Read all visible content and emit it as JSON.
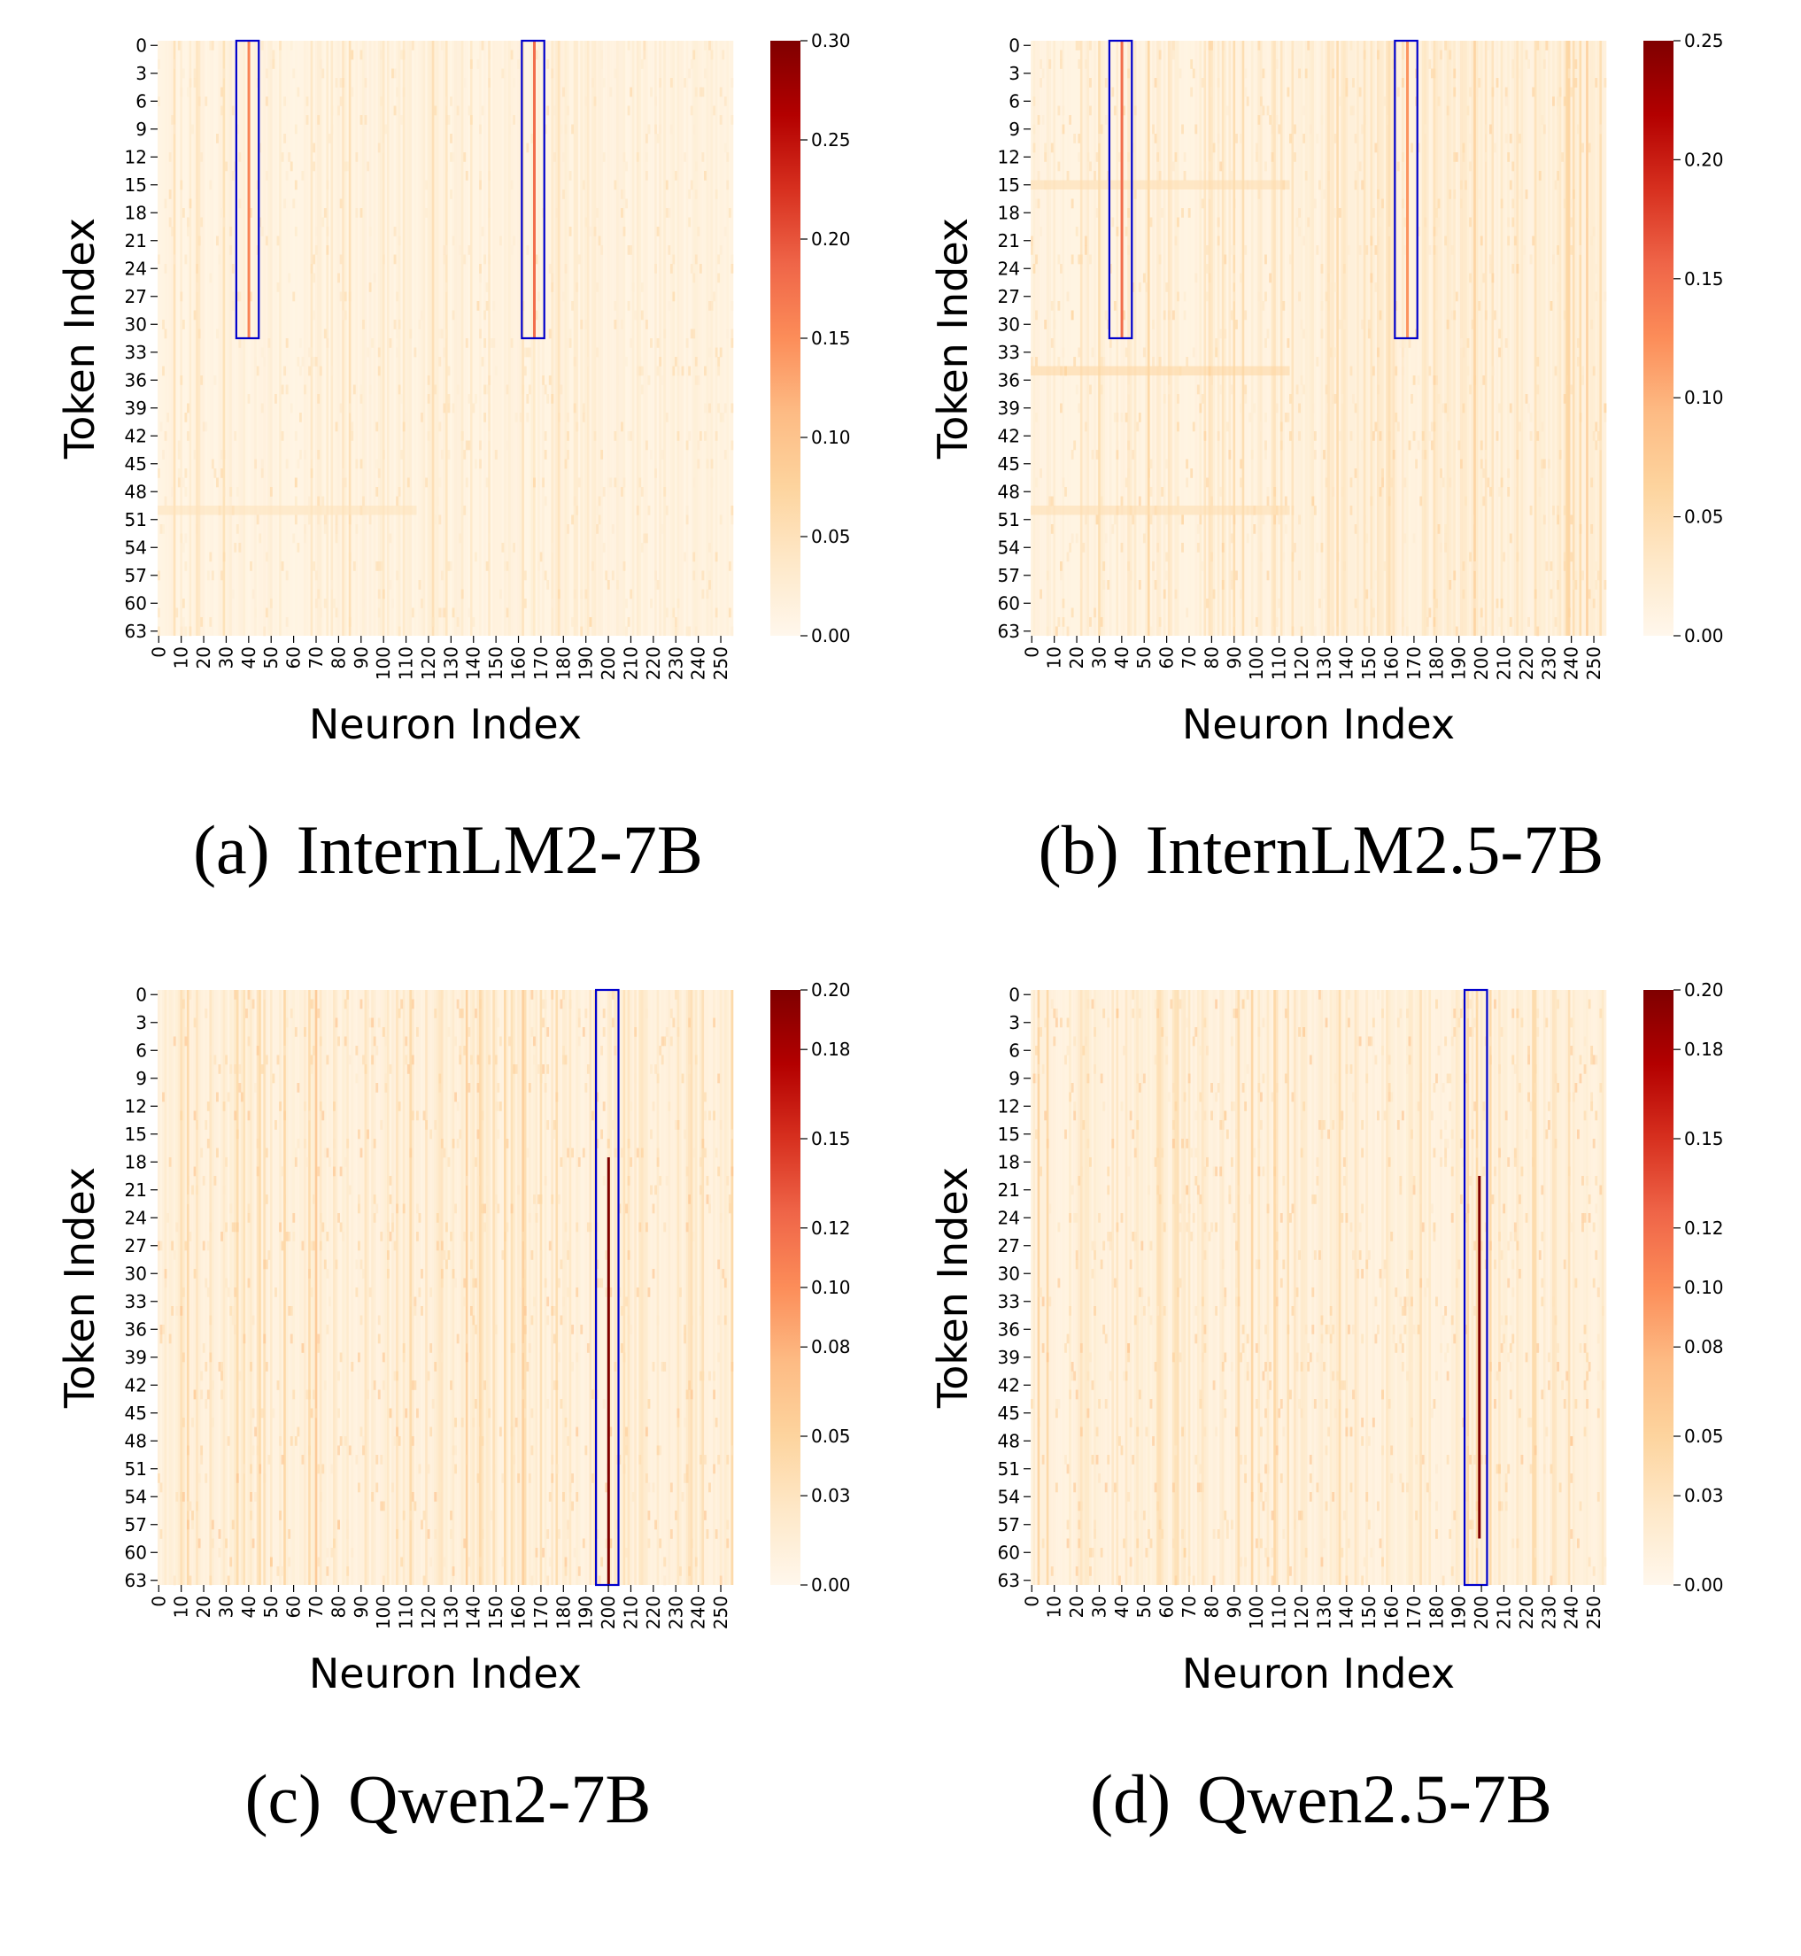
{
  "chart_data": [
    {
      "id": "a",
      "type": "heatmap",
      "caption_letter": "(a)",
      "caption_name": "InternLM2-7B",
      "xlabel": "Neuron Index",
      "ylabel": "Token Index",
      "x_range": [
        0,
        255
      ],
      "y_range": [
        0,
        63
      ],
      "x_ticks": [
        "0",
        "10",
        "20",
        "30",
        "40",
        "50",
        "60",
        "70",
        "80",
        "90",
        "100",
        "110",
        "120",
        "130",
        "140",
        "150",
        "160",
        "170",
        "180",
        "190",
        "200",
        "210",
        "220",
        "230",
        "240",
        "250"
      ],
      "y_ticks": [
        "0",
        "3",
        "6",
        "9",
        "12",
        "15",
        "18",
        "21",
        "24",
        "27",
        "30",
        "33",
        "36",
        "39",
        "42",
        "45",
        "48",
        "51",
        "54",
        "57",
        "60",
        "63"
      ],
      "colorbar_ticks": [
        "0.00",
        "0.05",
        "0.10",
        "0.15",
        "0.20",
        "0.25",
        "0.30"
      ],
      "colorbar_range": [
        0.0,
        0.3
      ],
      "highlight_boxes": [
        {
          "neuron_start": 35,
          "neuron_end": 45,
          "token_start": 0,
          "token_end": 32
        },
        {
          "neuron_start": 162,
          "neuron_end": 172,
          "token_start": 0,
          "token_end": 32
        }
      ],
      "hot_columns": [
        {
          "neuron": 40,
          "token_start": 0,
          "token_end": 31,
          "value": 0.16
        },
        {
          "neuron": 167,
          "token_start": 0,
          "token_end": 31,
          "value": 0.18
        }
      ],
      "hot_rows": [
        {
          "token": 50,
          "value": 0.05
        }
      ],
      "warm_neuron_ranges": [],
      "background_level": 0.02,
      "seed": 11
    },
    {
      "id": "b",
      "type": "heatmap",
      "caption_letter": "(b)",
      "caption_name": "InternLM2.5-7B",
      "xlabel": "Neuron Index",
      "ylabel": "Token Index",
      "x_range": [
        0,
        255
      ],
      "y_range": [
        0,
        63
      ],
      "x_ticks": [
        "0",
        "10",
        "20",
        "30",
        "40",
        "50",
        "60",
        "70",
        "80",
        "90",
        "100",
        "110",
        "120",
        "130",
        "140",
        "150",
        "160",
        "170",
        "180",
        "190",
        "200",
        "210",
        "220",
        "230",
        "240",
        "250"
      ],
      "y_ticks": [
        "0",
        "3",
        "6",
        "9",
        "12",
        "15",
        "18",
        "21",
        "24",
        "27",
        "30",
        "33",
        "36",
        "39",
        "42",
        "45",
        "48",
        "51",
        "54",
        "57",
        "60",
        "63"
      ],
      "colorbar_ticks": [
        "0.00",
        "0.05",
        "0.10",
        "0.15",
        "0.20",
        "0.25"
      ],
      "colorbar_range": [
        0.0,
        0.25
      ],
      "highlight_boxes": [
        {
          "neuron_start": 35,
          "neuron_end": 45,
          "token_start": 0,
          "token_end": 32
        },
        {
          "neuron_start": 162,
          "neuron_end": 172,
          "token_start": 0,
          "token_end": 32
        }
      ],
      "hot_columns": [
        {
          "neuron": 40,
          "token_start": 0,
          "token_end": 31,
          "value": 0.15
        },
        {
          "neuron": 167,
          "token_start": 0,
          "token_end": 31,
          "value": 0.12
        }
      ],
      "hot_rows": [
        {
          "token": 15,
          "value": 0.05
        },
        {
          "token": 50,
          "value": 0.05
        },
        {
          "token": 35,
          "value": 0.06
        }
      ],
      "warm_neuron_ranges": [
        [
          128,
          255
        ]
      ],
      "background_level": 0.02,
      "seed": 23
    },
    {
      "id": "c",
      "type": "heatmap",
      "caption_letter": "(c)",
      "caption_name": "Qwen2-7B",
      "xlabel": "Neuron Index",
      "ylabel": "Token Index",
      "x_range": [
        0,
        255
      ],
      "y_range": [
        0,
        63
      ],
      "x_ticks": [
        "0",
        "10",
        "20",
        "30",
        "40",
        "50",
        "60",
        "70",
        "80",
        "90",
        "100",
        "110",
        "120",
        "130",
        "140",
        "150",
        "160",
        "170",
        "180",
        "190",
        "200",
        "210",
        "220",
        "230",
        "240",
        "250"
      ],
      "y_ticks": [
        "0",
        "3",
        "6",
        "9",
        "12",
        "15",
        "18",
        "21",
        "24",
        "27",
        "30",
        "33",
        "36",
        "39",
        "42",
        "45",
        "48",
        "51",
        "54",
        "57",
        "60",
        "63"
      ],
      "colorbar_ticks": [
        "0.00",
        "0.03",
        "0.05",
        "0.08",
        "0.10",
        "0.12",
        "0.15",
        "0.18",
        "0.20"
      ],
      "colorbar_range": [
        0.0,
        0.2
      ],
      "highlight_boxes": [
        {
          "neuron_start": 195,
          "neuron_end": 205,
          "token_start": 0,
          "token_end": 64
        }
      ],
      "hot_columns": [
        {
          "neuron": 200,
          "token_start": 18,
          "token_end": 63,
          "value": 0.2
        }
      ],
      "hot_rows": [],
      "warm_neuron_ranges": [],
      "background_level": 0.02,
      "seed": 37
    },
    {
      "id": "d",
      "type": "heatmap",
      "caption_letter": "(d)",
      "caption_name": "Qwen2.5-7B",
      "xlabel": "Neuron Index",
      "ylabel": "Token Index",
      "x_range": [
        0,
        255
      ],
      "y_range": [
        0,
        63
      ],
      "x_ticks": [
        "0",
        "10",
        "20",
        "30",
        "40",
        "50",
        "60",
        "70",
        "80",
        "90",
        "100",
        "110",
        "120",
        "130",
        "140",
        "150",
        "160",
        "170",
        "180",
        "190",
        "200",
        "210",
        "220",
        "230",
        "240",
        "250"
      ],
      "y_ticks": [
        "0",
        "3",
        "6",
        "9",
        "12",
        "15",
        "18",
        "21",
        "24",
        "27",
        "30",
        "33",
        "36",
        "39",
        "42",
        "45",
        "48",
        "51",
        "54",
        "57",
        "60",
        "63"
      ],
      "colorbar_ticks": [
        "0.00",
        "0.03",
        "0.05",
        "0.08",
        "0.10",
        "0.12",
        "0.15",
        "0.18",
        "0.20"
      ],
      "colorbar_range": [
        0.0,
        0.2
      ],
      "highlight_boxes": [
        {
          "neuron_start": 193,
          "neuron_end": 203,
          "token_start": 0,
          "token_end": 64
        }
      ],
      "hot_columns": [
        {
          "neuron": 199,
          "token_start": 20,
          "token_end": 58,
          "value": 0.2
        }
      ],
      "hot_rows": [],
      "warm_neuron_ranges": [],
      "background_level": 0.02,
      "seed": 53
    }
  ]
}
